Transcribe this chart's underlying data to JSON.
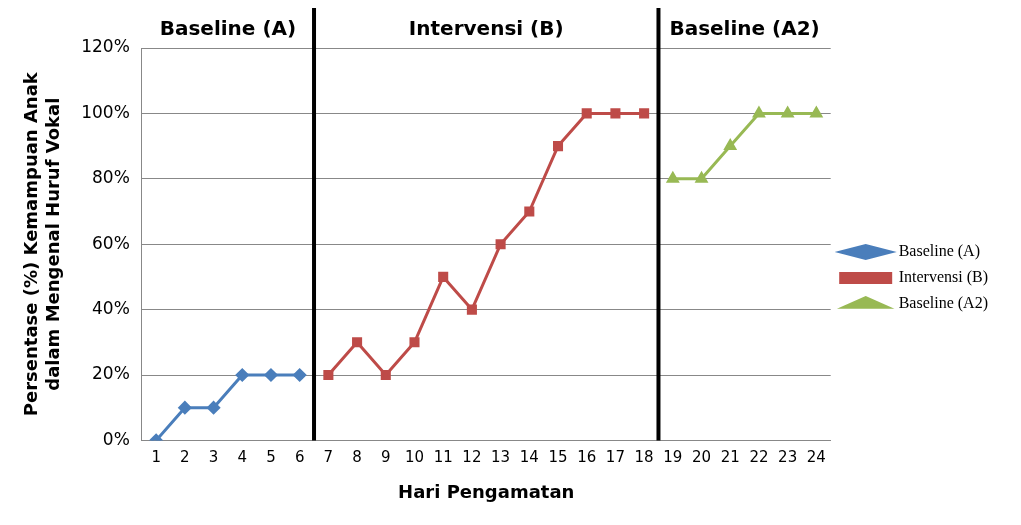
{
  "chart_data": {
    "type": "line",
    "xlabel": "Hari Pengamatan",
    "ylabel": "Persentase (%) Kemampuan Anak dalam Mengenal Huruf Vokal",
    "xlim": [
      0.5,
      24.5
    ],
    "xticks": [
      1,
      2,
      3,
      4,
      5,
      6,
      7,
      8,
      9,
      10,
      11,
      12,
      13,
      14,
      15,
      16,
      17,
      18,
      19,
      20,
      21,
      22,
      23,
      24
    ],
    "ylim": [
      0,
      120
    ],
    "yticks": [
      {
        "value": 0,
        "label": "0%"
      },
      {
        "value": 20,
        "label": "20%"
      },
      {
        "value": 40,
        "label": "40%"
      },
      {
        "value": 60,
        "label": "60%"
      },
      {
        "value": 80,
        "label": "80%"
      },
      {
        "value": 100,
        "label": "100%"
      },
      {
        "value": 120,
        "label": "120%"
      }
    ],
    "grid": "y",
    "legend": "right",
    "series": [
      {
        "name": "Baseline (A)",
        "color": "#4a7ebb",
        "marker": "diamond",
        "x": [
          1,
          2,
          3,
          4,
          5,
          6
        ],
        "values": [
          0,
          10,
          10,
          20,
          20,
          20
        ]
      },
      {
        "name": "Intervensi (B)",
        "color": "#be4b48",
        "marker": "square",
        "x": [
          7,
          8,
          9,
          10,
          11,
          12,
          13,
          14,
          15,
          16,
          17,
          18
        ],
        "values": [
          20,
          30,
          20,
          30,
          50,
          40,
          60,
          70,
          90,
          100,
          100,
          100
        ]
      },
      {
        "name": "Baseline (A2)",
        "color": "#98b954",
        "marker": "triangle",
        "x": [
          19,
          20,
          21,
          22,
          23,
          24
        ],
        "values": [
          80,
          80,
          90,
          100,
          100,
          100
        ]
      }
    ],
    "ref_lines": [
      {
        "axis": "x",
        "value": 6.5,
        "color": "#000000"
      },
      {
        "axis": "x",
        "value": 18.5,
        "color": "#000000"
      }
    ],
    "annotations": [
      "Baseline (A)",
      "Intervensi (B)",
      "Baseline (A2)"
    ]
  }
}
